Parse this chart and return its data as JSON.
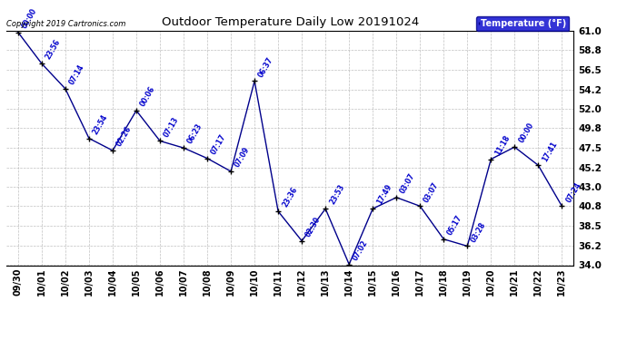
{
  "title": "Outdoor Temperature Daily Low 20191024",
  "copyright": "Copyright 2019 Cartronics.com",
  "legend_label": "Temperature (°F)",
  "x_labels": [
    "09/30",
    "10/01",
    "10/02",
    "10/03",
    "10/04",
    "10/05",
    "10/06",
    "10/07",
    "10/08",
    "10/09",
    "10/10",
    "10/11",
    "10/12",
    "10/13",
    "10/14",
    "10/15",
    "10/16",
    "10/17",
    "10/18",
    "10/19",
    "10/20",
    "10/21",
    "10/22",
    "10/23"
  ],
  "y_values": [
    60.8,
    57.2,
    54.3,
    48.6,
    47.2,
    51.8,
    48.3,
    47.5,
    46.3,
    44.8,
    55.2,
    40.2,
    36.8,
    40.5,
    34.1,
    40.5,
    41.8,
    40.8,
    37.0,
    36.2,
    46.2,
    47.6,
    45.5,
    40.8
  ],
  "time_labels": [
    "00:00",
    "23:56",
    "07:14",
    "23:54",
    "02:26",
    "00:06",
    "07:13",
    "06:23",
    "07:17",
    "07:09",
    "06:37",
    "23:36",
    "02:30",
    "23:53",
    "07:02",
    "17:49",
    "03:07",
    "03:07",
    "05:17",
    "03:28",
    "11:18",
    "00:00",
    "17:41",
    "07:24"
  ],
  "ylim": [
    34.0,
    61.0
  ],
  "yticks": [
    34.0,
    36.2,
    38.5,
    40.8,
    43.0,
    45.2,
    47.5,
    49.8,
    52.0,
    54.2,
    56.5,
    58.8,
    61.0
  ],
  "line_color": "#00008B",
  "marker_color": "#000000",
  "label_color": "#0000CC",
  "bg_color": "#ffffff",
  "grid_color": "#b0b0b0",
  "title_color": "#000000",
  "legend_bg": "#0000CC",
  "legend_text_color": "#ffffff"
}
